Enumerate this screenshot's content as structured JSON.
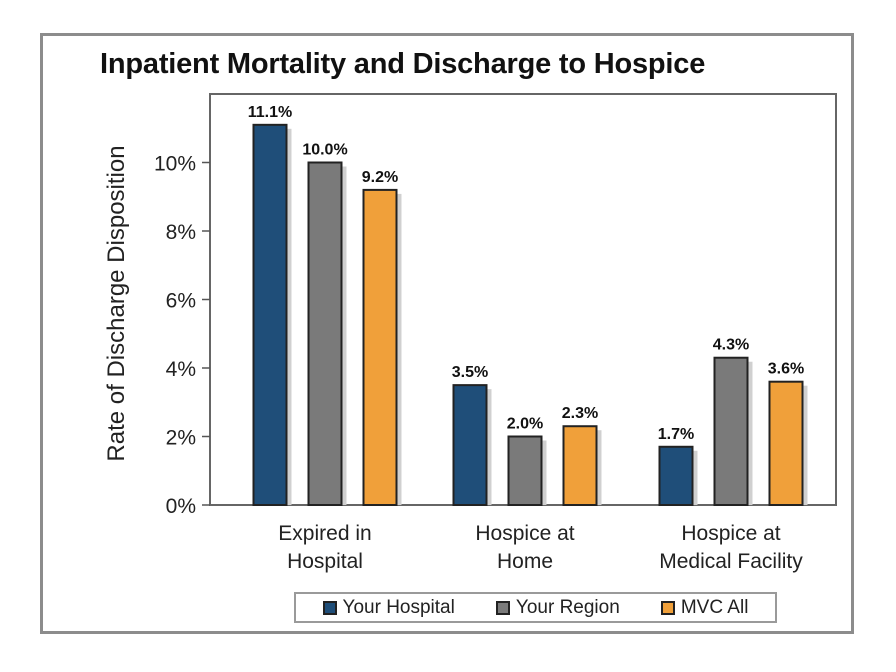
{
  "chart_data": {
    "type": "bar",
    "title": "Inpatient Mortality and Discharge to Hospice",
    "ylabel": "Rate of Discharge Disposition",
    "xlabel": "",
    "categories": [
      [
        "Expired in",
        "Hospital"
      ],
      [
        "Hospice at",
        "Home"
      ],
      [
        "Hospice at",
        "Medical Facility"
      ]
    ],
    "series": [
      {
        "name": "Your Hospital",
        "color": "#1f4e79",
        "values": [
          11.1,
          3.5,
          1.7
        ],
        "labels": [
          "11.1%",
          "3.5%",
          "1.7%"
        ]
      },
      {
        "name": "Your Region",
        "color": "#7a7a7a",
        "values": [
          10.0,
          2.0,
          4.3
        ],
        "labels": [
          "10.0%",
          "2.0%",
          "4.3%"
        ]
      },
      {
        "name": "MVC All",
        "color": "#f0a03a",
        "values": [
          9.2,
          2.3,
          3.6
        ],
        "labels": [
          "9.2%",
          "2.3%",
          "3.6%"
        ]
      }
    ],
    "ylim": [
      0,
      12
    ],
    "yticks": [
      0,
      2,
      4,
      6,
      8,
      10
    ],
    "ytick_labels": [
      "0%",
      "2%",
      "4%",
      "6%",
      "8%",
      "10%"
    ],
    "grid": false,
    "legend_position": "bottom"
  }
}
